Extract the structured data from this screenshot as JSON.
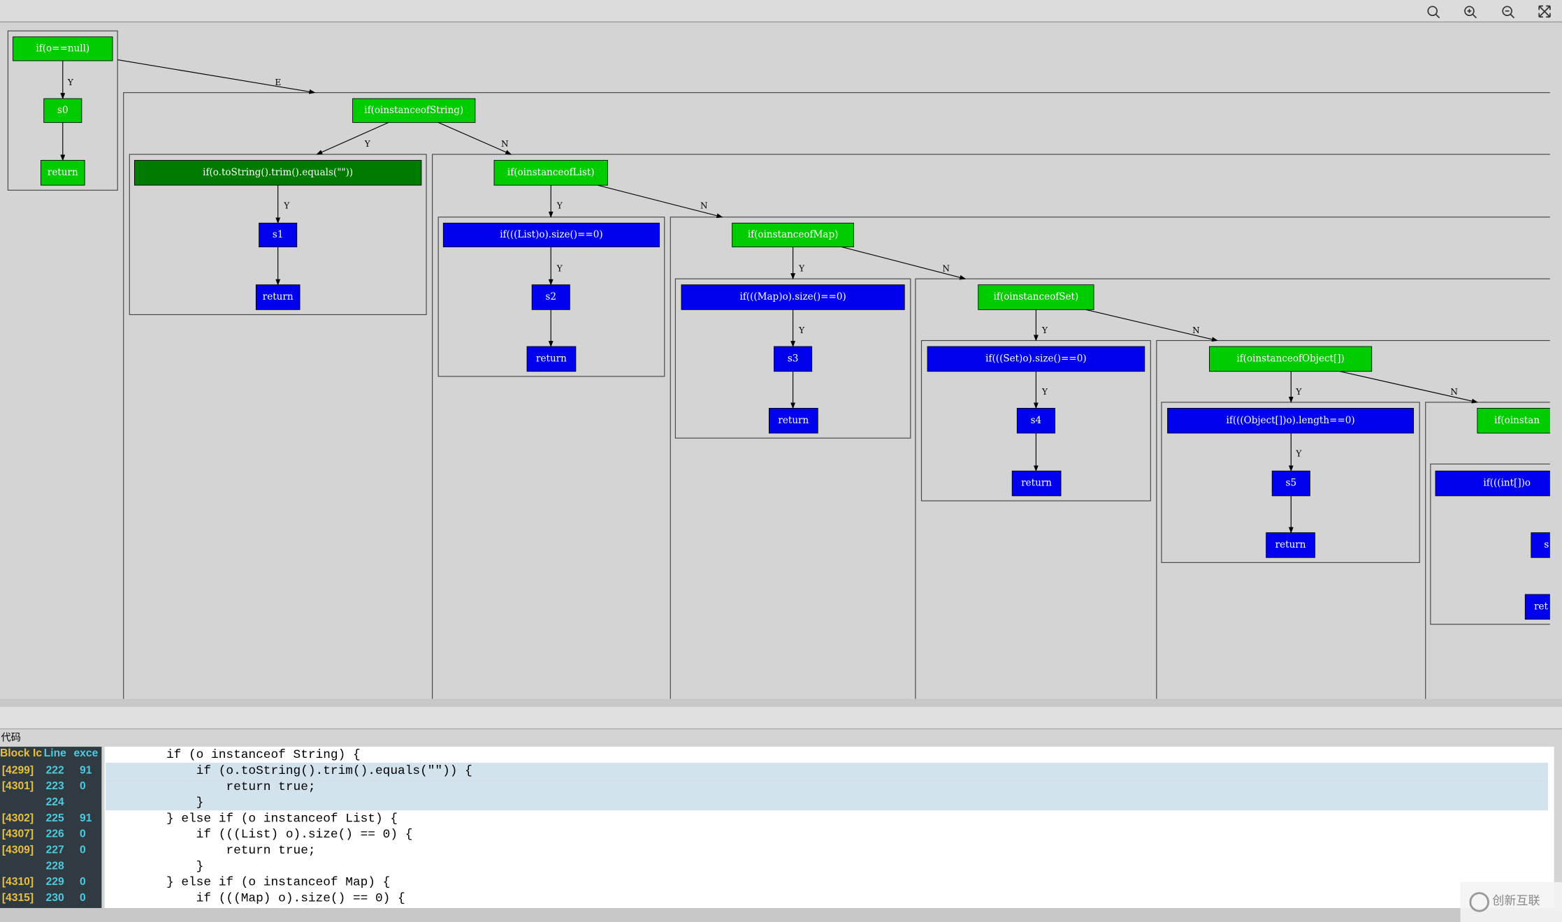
{
  "graph": {
    "nodes": [
      {
        "label": "if(o==null)",
        "color": "#00cc00"
      },
      {
        "label": "s0",
        "color": "#00cc00"
      },
      {
        "label": "return",
        "color": "#00cc00"
      },
      {
        "label": "if(oinstanceofString)",
        "color": "#00cc00"
      },
      {
        "label": "if(o.toString().trim().equals(\"\"))",
        "color": "#007a00"
      },
      {
        "label": "s1",
        "color": "#0000ee"
      },
      {
        "label": "return",
        "color": "#0000ee"
      },
      {
        "label": "if(oinstanceofList)",
        "color": "#00cc00"
      },
      {
        "label": "if(((List)o).size()==0)",
        "color": "#0000ee"
      },
      {
        "label": "s2",
        "color": "#0000ee"
      },
      {
        "label": "return",
        "color": "#0000ee"
      },
      {
        "label": "if(oinstanceofMap)",
        "color": "#00cc00"
      },
      {
        "label": "if(((Map)o).size()==0)",
        "color": "#0000ee"
      },
      {
        "label": "s3",
        "color": "#0000ee"
      },
      {
        "label": "return",
        "color": "#0000ee"
      },
      {
        "label": "if(oinstanceofSet)",
        "color": "#00cc00"
      },
      {
        "label": "if(((Set)o).size()==0)",
        "color": "#0000ee"
      },
      {
        "label": "s4",
        "color": "#0000ee"
      },
      {
        "label": "return",
        "color": "#0000ee"
      },
      {
        "label": "if(oinstanceofObject[])",
        "color": "#00cc00"
      },
      {
        "label": "if(((Object[])o).length==0)",
        "color": "#0000ee"
      },
      {
        "label": "s5",
        "color": "#0000ee"
      },
      {
        "label": "return",
        "color": "#0000ee"
      },
      {
        "label": "if(oinstan",
        "color": "#00cc00"
      },
      {
        "label": "if(((int[])o",
        "color": "#0000ee"
      },
      {
        "label": "s",
        "color": "#0000ee"
      },
      {
        "label": "ret",
        "color": "#0000ee"
      }
    ],
    "edge_labels": [
      "E",
      "Y",
      "Y",
      "N",
      "Y",
      "Y",
      "N",
      "Y",
      "Y",
      "N",
      "Y",
      "Y",
      "N",
      "Y",
      "Y",
      "N",
      "Y"
    ]
  },
  "code_panel": {
    "title": "代码",
    "columns": [
      "Block Ic",
      "Line",
      "exce"
    ],
    "rows": [
      [
        "[4299]",
        "222",
        "91"
      ],
      [
        "[4301]",
        "223",
        "0"
      ],
      [
        null,
        "224",
        null
      ],
      [
        "[4302]",
        "225",
        "91"
      ],
      [
        "[4307]",
        "226",
        "0"
      ],
      [
        "[4309]",
        "227",
        "0"
      ],
      [
        null,
        "228",
        null
      ],
      [
        "[4310]",
        "229",
        "0"
      ],
      [
        "[4315]",
        "230",
        "0"
      ]
    ],
    "code_lines": [
      "        if (o instanceof String) {",
      "            if (o.toString().trim().equals(\"\")) {",
      "                return true;",
      "            }",
      "        } else if (o instanceof List) {",
      "            if (((List) o).size() == 0) {",
      "                return true;",
      "            }",
      "        } else if (o instanceof Map) {",
      "            if (((Map) o).size() == 0) {"
    ],
    "highlighted_lines": [
      1,
      2,
      3
    ]
  },
  "watermark": "创新互联"
}
